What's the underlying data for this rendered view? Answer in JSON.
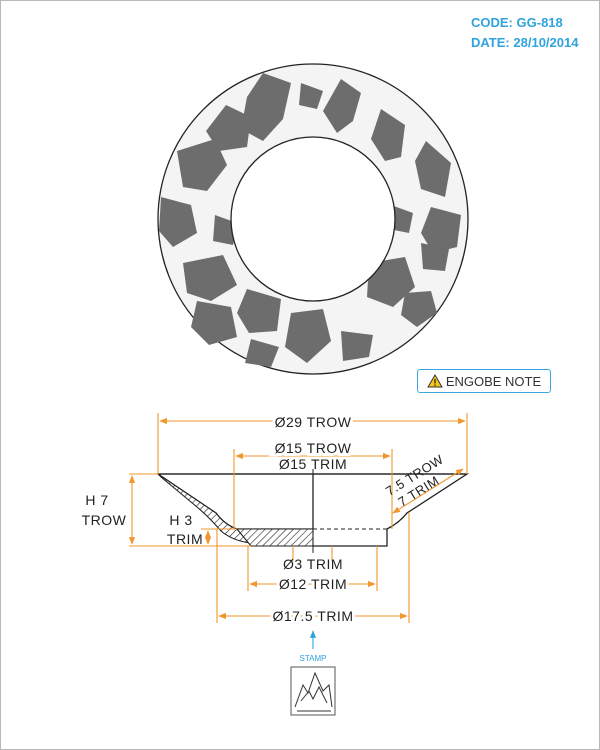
{
  "header": {
    "code_label": "CODE:",
    "code_value": "GG-818",
    "date_label": "DATE:",
    "date_value": "28/10/2014"
  },
  "engobe_note": {
    "label": "ENGOBE NOTE",
    "icon": "warning-icon"
  },
  "dimensions": {
    "outer_trow": "Ø29 TROW",
    "inner_trow": "Ø15 TROW",
    "inner_trim": "Ø15 TRIM",
    "diag_trow": "7.5 TROW",
    "diag_trim": "7 TRIM",
    "height_total_1": "H 7",
    "height_total_2": "TROW",
    "height_foot_1": "H 3",
    "height_foot_2": "TRIM",
    "center_trim": "Ø3 TRIM",
    "foot_trim": "Ø12 TRIM",
    "base_trim": "Ø17.5 TRIM"
  },
  "stamp": {
    "label": "STAMP"
  },
  "colors": {
    "accent_blue": "#2fa3de",
    "dimension_orange": "#f0962c",
    "glaze_gray": "#6d6d6d",
    "outline": "#222222"
  }
}
